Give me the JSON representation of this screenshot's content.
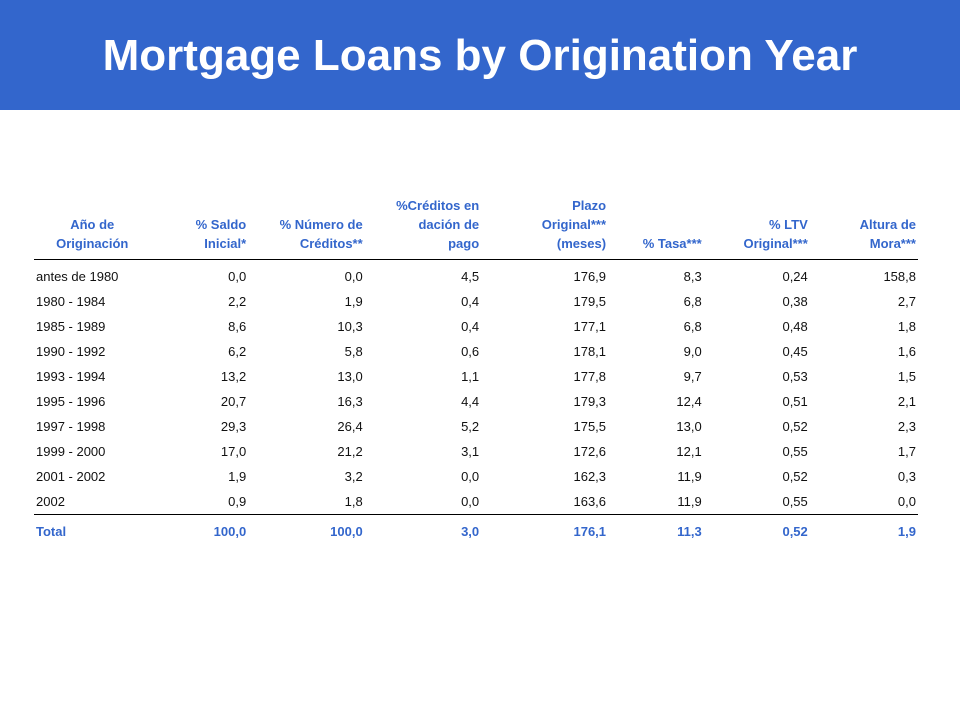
{
  "header": {
    "title": "Mortgage Loans by Origination Year"
  },
  "table": {
    "columns": [
      {
        "lines": [
          "Año de",
          "Originación"
        ],
        "align": "center"
      },
      {
        "lines": [
          "% Saldo",
          "Inicial*"
        ],
        "align": "right"
      },
      {
        "lines": [
          "% Número de",
          "Créditos**"
        ],
        "align": "right"
      },
      {
        "lines": [
          "%Créditos en",
          "dación de",
          "pago"
        ],
        "align": "right"
      },
      {
        "lines": [
          "Plazo",
          "Original***",
          "(meses)"
        ],
        "align": "right"
      },
      {
        "lines": [
          "% Tasa***"
        ],
        "align": "right"
      },
      {
        "lines": [
          "% LTV",
          "Original***"
        ],
        "align": "right"
      },
      {
        "lines": [
          "Altura de",
          "Mora***"
        ],
        "align": "right"
      }
    ],
    "rows": [
      [
        "antes de 1980",
        "0,0",
        "0,0",
        "4,5",
        "176,9",
        "8,3",
        "0,24",
        "158,8"
      ],
      [
        "1980 - 1984",
        "2,2",
        "1,9",
        "0,4",
        "179,5",
        "6,8",
        "0,38",
        "2,7"
      ],
      [
        "1985 - 1989",
        "8,6",
        "10,3",
        "0,4",
        "177,1",
        "6,8",
        "0,48",
        "1,8"
      ],
      [
        "1990 - 1992",
        "6,2",
        "5,8",
        "0,6",
        "178,1",
        "9,0",
        "0,45",
        "1,6"
      ],
      [
        "1993 - 1994",
        "13,2",
        "13,0",
        "1,1",
        "177,8",
        "9,7",
        "0,53",
        "1,5"
      ],
      [
        "1995 - 1996",
        "20,7",
        "16,3",
        "4,4",
        "179,3",
        "12,4",
        "0,51",
        "2,1"
      ],
      [
        "1997 - 1998",
        "29,3",
        "26,4",
        "5,2",
        "175,5",
        "13,0",
        "0,52",
        "2,3"
      ],
      [
        "1999 - 2000",
        "17,0",
        "21,2",
        "3,1",
        "172,6",
        "12,1",
        "0,55",
        "1,7"
      ],
      [
        "2001 - 2002",
        "1,9",
        "3,2",
        "0,0",
        "162,3",
        "11,9",
        "0,52",
        "0,3"
      ],
      [
        "2002",
        "0,9",
        "1,8",
        "0,0",
        "163,6",
        "11,9",
        "0,55",
        "0,0"
      ]
    ],
    "total": [
      "Total",
      "100,0",
      "100,0",
      "3,0",
      "176,1",
      "11,3",
      "0,52",
      "1,9"
    ]
  },
  "colors": {
    "banner": "#3366cc",
    "header_text": "#3366cc",
    "body_text": "#111111"
  }
}
